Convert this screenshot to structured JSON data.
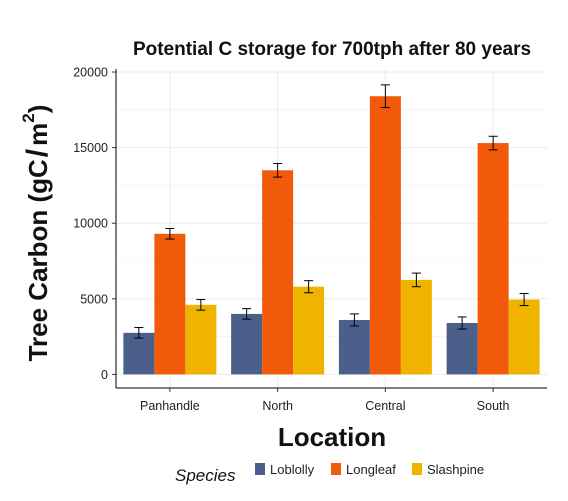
{
  "chart_data": {
    "type": "bar",
    "title": "Potential C storage for 700tph after 80 years",
    "xlabel": "Location",
    "ylabel": "Tree Carbon (gC/m²)",
    "ylabel_main": "Tree Carbon (gC",
    "ylabel_slash": "/",
    "ylabel_unit": "m",
    "ylabel_sup": "2",
    "ylabel_close": ")",
    "ylim": [
      -900,
      20200
    ],
    "yticks": [
      0,
      5000,
      10000,
      15000,
      20000
    ],
    "grid": true,
    "legend_position": "bottom",
    "legend_title": "Species",
    "categories": [
      "Panhandle",
      "North",
      "Central",
      "South"
    ],
    "series": [
      {
        "name": "Loblolly",
        "color": "#4a5f8a",
        "values": [
          2750,
          4000,
          3600,
          3400
        ],
        "errors": [
          350,
          350,
          400,
          400
        ]
      },
      {
        "name": "Longleaf",
        "color": "#f05a0a",
        "values": [
          9300,
          13500,
          18400,
          15300
        ],
        "errors": [
          350,
          450,
          750,
          450
        ]
      },
      {
        "name": "Slashpine",
        "color": "#f0b400",
        "values": [
          4600,
          5800,
          6250,
          4950
        ],
        "errors": [
          350,
          400,
          450,
          400
        ]
      }
    ]
  }
}
